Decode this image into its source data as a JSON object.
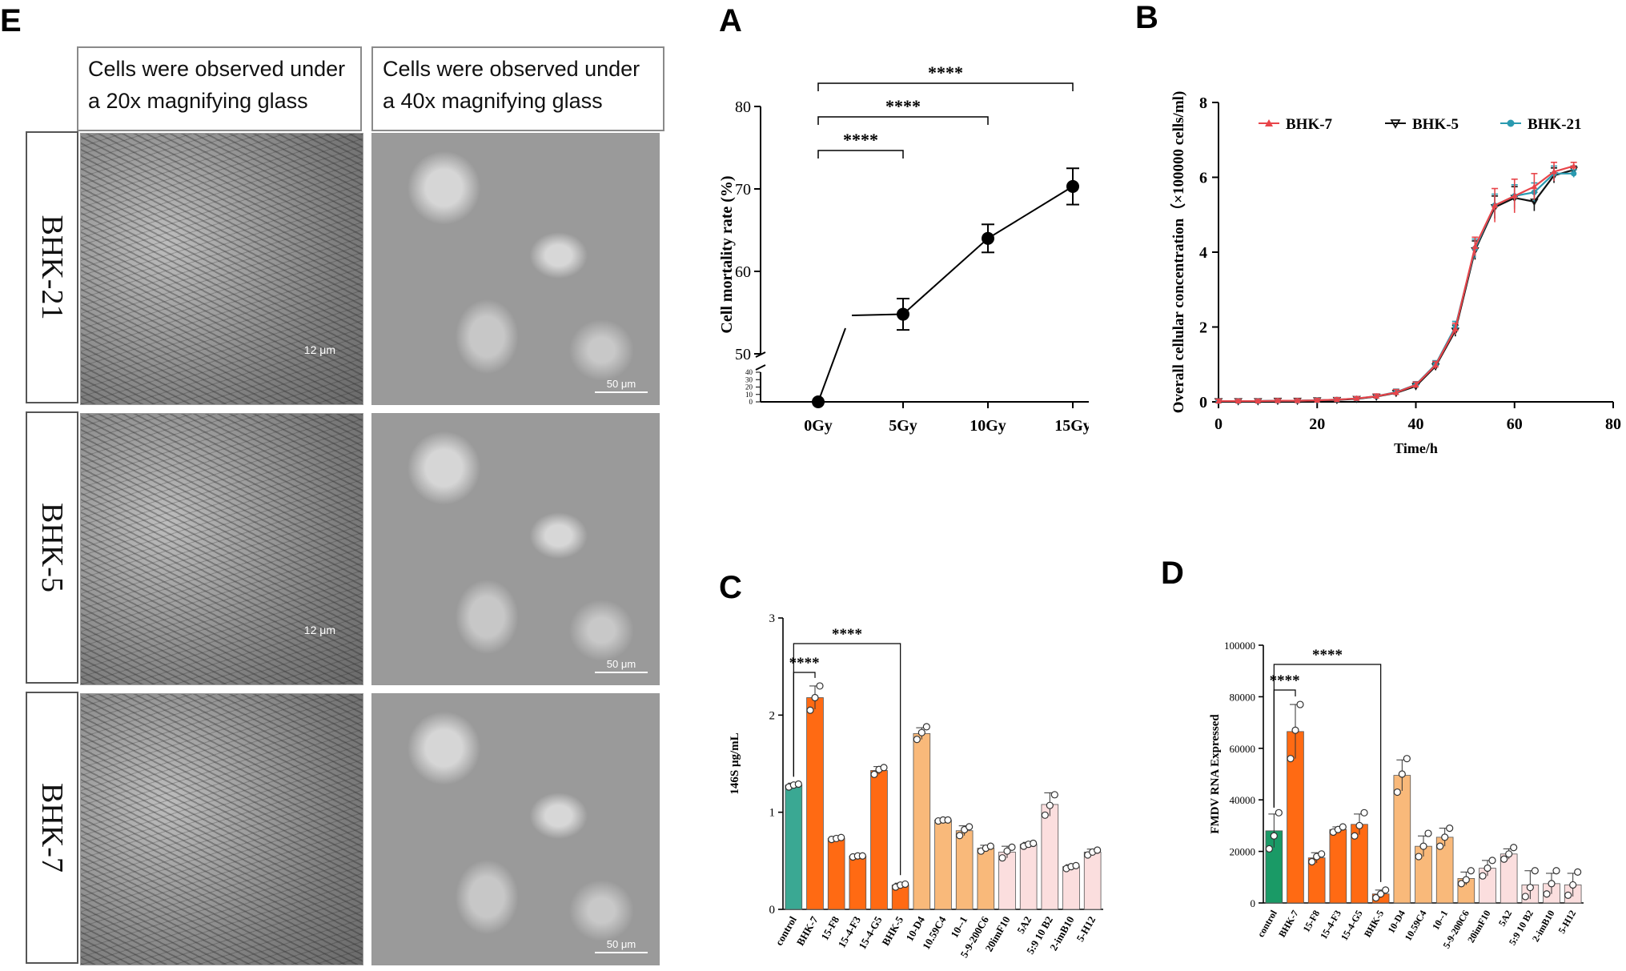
{
  "panel_labels": {
    "e": "E",
    "a": "A",
    "b": "B",
    "c": "C",
    "d": "D"
  },
  "micro": {
    "header_20x": "Cells were observed under a 20x magnifying glass",
    "header_40x": "Cells were observed under a 40x magnifying glass",
    "rows": [
      "BHK-21",
      "BHK-5",
      "BHK-7"
    ],
    "scale_20x": "12 μm",
    "scale_40x": "50 μm"
  },
  "colors": {
    "control": "#3aa893",
    "control_d": "#1a9a66",
    "group2": "#ff6a13",
    "group3": "#f9b97a",
    "group4": "#fbdede",
    "bhk7": "#e8454a",
    "bhk5": "#111111",
    "bhk21": "#2a9ab0"
  },
  "chart_data": [
    {
      "id": "A",
      "type": "line",
      "categories": [
        "0Gy",
        "5Gy",
        "10Gy",
        "15Gy"
      ],
      "values": [
        0,
        54.8,
        64.0,
        70.3
      ],
      "errors": [
        0.5,
        1.9,
        1.7,
        2.2
      ],
      "ylabel": "Cell mortality rate (%)",
      "ylim": [
        0,
        80
      ],
      "yticks_main": [
        50,
        60,
        70,
        80
      ],
      "yticks_low": [
        0,
        10,
        20,
        30,
        40
      ],
      "axis_break": true,
      "significance": [
        {
          "from": "0Gy",
          "to": "5Gy",
          "label": "****"
        },
        {
          "from": "0Gy",
          "to": "10Gy",
          "label": "****"
        },
        {
          "from": "0Gy",
          "to": "15Gy",
          "label": "****"
        }
      ]
    },
    {
      "id": "B",
      "type": "line",
      "xlabel": "Time/h",
      "ylabel": "Overall cellular concentration（×100000 cells/ml)",
      "xlim": [
        0,
        80
      ],
      "ylim": [
        0,
        8
      ],
      "xticks": [
        0,
        20,
        40,
        60,
        80
      ],
      "yticks": [
        0,
        2,
        4,
        6,
        8
      ],
      "legend_position": "top",
      "x": [
        0,
        4,
        8,
        12,
        16,
        20,
        24,
        28,
        32,
        36,
        40,
        44,
        48,
        52,
        56,
        60,
        64,
        68,
        72
      ],
      "series": [
        {
          "name": "BHK-7",
          "values": [
            0.02,
            0.02,
            0.02,
            0.03,
            0.03,
            0.04,
            0.06,
            0.09,
            0.15,
            0.25,
            0.45,
            0.98,
            1.95,
            4.15,
            5.25,
            5.5,
            5.75,
            6.15,
            6.3
          ],
          "errors": [
            0.05,
            0.05,
            0.05,
            0.05,
            0.05,
            0.05,
            0.05,
            0.05,
            0.06,
            0.08,
            0.08,
            0.1,
            0.15,
            0.25,
            0.45,
            0.45,
            0.35,
            0.25,
            0.1
          ]
        },
        {
          "name": "BHK-5",
          "values": [
            0.02,
            0.02,
            0.02,
            0.03,
            0.03,
            0.04,
            0.05,
            0.08,
            0.14,
            0.24,
            0.42,
            0.95,
            1.9,
            4.05,
            5.2,
            5.45,
            5.35,
            6.05,
            6.2
          ],
          "errors": [
            0.05,
            0.05,
            0.05,
            0.05,
            0.05,
            0.05,
            0.05,
            0.05,
            0.06,
            0.08,
            0.08,
            0.1,
            0.15,
            0.25,
            0.3,
            0.3,
            0.25,
            0.2,
            0.1
          ]
        },
        {
          "name": "BHK-21",
          "values": [
            0.02,
            0.02,
            0.02,
            0.03,
            0.03,
            0.04,
            0.06,
            0.09,
            0.15,
            0.26,
            0.46,
            1.0,
            2.0,
            4.1,
            5.25,
            5.5,
            5.6,
            6.1,
            6.1
          ],
          "errors": [
            0.05,
            0.05,
            0.05,
            0.05,
            0.05,
            0.05,
            0.05,
            0.05,
            0.06,
            0.08,
            0.08,
            0.1,
            0.15,
            0.25,
            0.3,
            0.3,
            0.25,
            0.2,
            0.1
          ]
        }
      ]
    },
    {
      "id": "C",
      "type": "bar",
      "ylabel": "146S μg/mL",
      "ylim": [
        0,
        3
      ],
      "yticks": [
        0,
        1,
        2,
        3
      ],
      "categories": [
        "control",
        "BHK-7",
        "15-F8",
        "15-4-F3",
        "15-4-G5",
        "BHK-5",
        "10-D4",
        "10.59C4",
        "10--1",
        "5-9-200C6",
        "20imF10",
        "5A2",
        "5:9 10 B2",
        "2-imB10",
        "5-H12"
      ],
      "values": [
        1.28,
        2.18,
        0.73,
        0.55,
        1.43,
        0.25,
        1.81,
        0.92,
        0.81,
        0.63,
        0.59,
        0.67,
        1.08,
        0.44,
        0.59
      ],
      "errors": [
        0.02,
        0.12,
        0.01,
        0.01,
        0.04,
        0.02,
        0.06,
        0.01,
        0.05,
        0.03,
        0.06,
        0.02,
        0.12,
        0.02,
        0.03
      ],
      "points": [
        [
          1.26,
          1.28,
          1.29
        ],
        [
          2.05,
          2.18,
          2.3
        ],
        [
          0.72,
          0.73,
          0.74
        ],
        [
          0.54,
          0.55,
          0.55
        ],
        [
          1.39,
          1.44,
          1.46
        ],
        [
          0.23,
          0.25,
          0.26
        ],
        [
          1.75,
          1.82,
          1.88
        ],
        [
          0.91,
          0.92,
          0.92
        ],
        [
          0.76,
          0.82,
          0.85
        ],
        [
          0.6,
          0.63,
          0.65
        ],
        [
          0.53,
          0.6,
          0.64
        ],
        [
          0.65,
          0.67,
          0.68
        ],
        [
          0.97,
          1.07,
          1.18
        ],
        [
          0.42,
          0.44,
          0.45
        ],
        [
          0.56,
          0.59,
          0.61
        ]
      ],
      "groups": [
        0,
        1,
        1,
        1,
        1,
        1,
        2,
        2,
        2,
        2,
        3,
        3,
        3,
        3,
        3
      ],
      "significance": [
        {
          "from": "control",
          "to": "BHK-7",
          "label": "****"
        },
        {
          "from": "control",
          "to": "BHK-5",
          "label": "****"
        }
      ]
    },
    {
      "id": "D",
      "type": "bar",
      "ylabel": "FMDV RNA Expressed",
      "ylim": [
        0,
        100000
      ],
      "yticks": [
        0,
        20000,
        40000,
        60000,
        80000,
        100000
      ],
      "categories": [
        "control",
        "BHK-7",
        "15-F8",
        "15-4-F3",
        "15-4-G5",
        "BHK-5",
        "10-D4",
        "10.59C4",
        "10--1",
        "5-9-200C6",
        "20imF10",
        "5A2",
        "5:9 10 B2",
        "2-imB10",
        "5-H12"
      ],
      "values": [
        28000,
        66500,
        17500,
        28500,
        30500,
        3500,
        49500,
        22000,
        25500,
        9500,
        13500,
        19000,
        7000,
        7500,
        7000
      ],
      "errors": [
        6500,
        10500,
        2000,
        1000,
        4000,
        1500,
        6000,
        4000,
        3500,
        2500,
        3000,
        2000,
        5500,
        4000,
        4500
      ],
      "points": [
        [
          21000,
          26000,
          35000
        ],
        [
          56000,
          67000,
          77000
        ],
        [
          16000,
          18000,
          19000
        ],
        [
          27500,
          28500,
          29500
        ],
        [
          26000,
          30000,
          35000
        ],
        [
          2000,
          3500,
          5000
        ],
        [
          43000,
          50000,
          56000
        ],
        [
          18000,
          22000,
          27000
        ],
        [
          22000,
          25500,
          29000
        ],
        [
          7500,
          9000,
          12500
        ],
        [
          10500,
          13500,
          16500
        ],
        [
          17000,
          19000,
          21500
        ],
        [
          2500,
          6000,
          12500
        ],
        [
          3500,
          7500,
          12500
        ],
        [
          3000,
          7000,
          12000
        ]
      ],
      "groups": [
        0,
        1,
        1,
        1,
        1,
        1,
        2,
        2,
        2,
        2,
        3,
        3,
        3,
        3,
        3
      ],
      "significance": [
        {
          "from": "control",
          "to": "BHK-7",
          "label": "****"
        },
        {
          "from": "control",
          "to": "BHK-5",
          "label": "****"
        }
      ]
    }
  ]
}
